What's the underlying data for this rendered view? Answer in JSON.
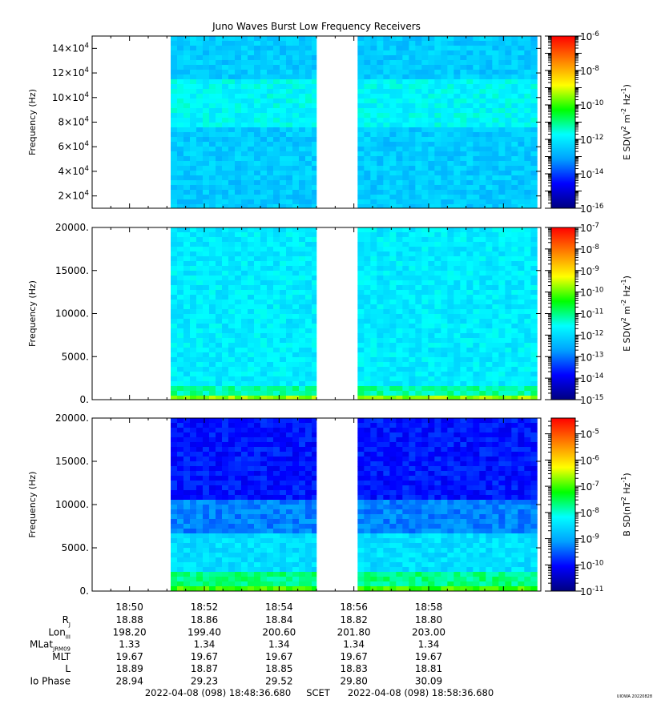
{
  "title": "Juno Waves Burst Low Frequency Receivers",
  "colormap": [
    "#000080",
    "#0000ff",
    "#00a0ff",
    "#00ffff",
    "#00ff00",
    "#ffff00",
    "#ff8000",
    "#ff0000"
  ],
  "chart_data": [
    {
      "type": "heatmap",
      "ylabel": "Frequency (Hz)",
      "ylim": [
        10000,
        150000
      ],
      "yticks": [
        {
          "v": 20000,
          "b": "2×10",
          "e": "4"
        },
        {
          "v": 40000,
          "b": "4×10",
          "e": "4"
        },
        {
          "v": 60000,
          "b": "6×10",
          "e": "4"
        },
        {
          "v": 80000,
          "b": "8×10",
          "e": "4"
        },
        {
          "v": 100000,
          "b": "10×10",
          "e": "4"
        },
        {
          "v": 120000,
          "b": "12×10",
          "e": "4"
        },
        {
          "v": 140000,
          "b": "14×10",
          "e": "4"
        }
      ],
      "colorbar": {
        "label_main": "E SD(V",
        "label_sup1": "2",
        "label_mid": " m",
        "label_sup2": "-2",
        "label_mid2": " Hz",
        "label_sup3": "-1",
        "label_end": ")",
        "log_range": [
          -16,
          -6
        ],
        "ticks": [
          {
            "v": -16,
            "b": "10",
            "e": "-16"
          },
          {
            "v": -14,
            "b": "10",
            "e": "-14"
          },
          {
            "v": -12,
            "b": "10",
            "e": "-12"
          },
          {
            "v": -10,
            "b": "10",
            "e": "-10"
          },
          {
            "v": -8,
            "b": "10",
            "e": "-8"
          },
          {
            "v": -6,
            "b": "10",
            "e": "-6"
          }
        ]
      }
    },
    {
      "type": "heatmap",
      "ylabel": "Frequency (Hz)",
      "ylim": [
        0,
        20000
      ],
      "yticks": [
        {
          "v": 0,
          "b": "0.",
          "e": ""
        },
        {
          "v": 5000,
          "b": "5000.",
          "e": ""
        },
        {
          "v": 10000,
          "b": "10000.",
          "e": ""
        },
        {
          "v": 15000,
          "b": "15000.",
          "e": ""
        },
        {
          "v": 20000,
          "b": "20000.",
          "e": ""
        }
      ],
      "colorbar": {
        "label_main": "E SD(V",
        "label_sup1": "2",
        "label_mid": " m",
        "label_sup2": "-2",
        "label_mid2": " Hz",
        "label_sup3": "-1",
        "label_end": ")",
        "log_range": [
          -15,
          -7
        ],
        "ticks": [
          {
            "v": -15,
            "b": "10",
            "e": "-15"
          },
          {
            "v": -14,
            "b": "10",
            "e": "-14"
          },
          {
            "v": -13,
            "b": "10",
            "e": "-13"
          },
          {
            "v": -12,
            "b": "10",
            "e": "-12"
          },
          {
            "v": -11,
            "b": "10",
            "e": "-11"
          },
          {
            "v": -10,
            "b": "10",
            "e": "-10"
          },
          {
            "v": -9,
            "b": "10",
            "e": "-9"
          },
          {
            "v": -8,
            "b": "10",
            "e": "-8"
          },
          {
            "v": -7,
            "b": "10",
            "e": "-7"
          }
        ]
      }
    },
    {
      "type": "heatmap",
      "ylabel": "Frequency (Hz)",
      "ylim": [
        0,
        20000
      ],
      "yticks": [
        {
          "v": 0,
          "b": "0.",
          "e": ""
        },
        {
          "v": 5000,
          "b": "5000.",
          "e": ""
        },
        {
          "v": 10000,
          "b": "10000.",
          "e": ""
        },
        {
          "v": 15000,
          "b": "15000.",
          "e": ""
        },
        {
          "v": 20000,
          "b": "20000.",
          "e": ""
        }
      ],
      "colorbar": {
        "label_main": "B SD(nT",
        "label_sup1": "2",
        "label_mid": " Hz",
        "label_sup2": "-1",
        "label_mid2": "",
        "label_sup3": "",
        "label_end": ")",
        "log_range": [
          -11,
          -4.4
        ],
        "ticks": [
          {
            "v": -11,
            "b": "10",
            "e": "-11"
          },
          {
            "v": -10,
            "b": "10",
            "e": "-10"
          },
          {
            "v": -9,
            "b": "10",
            "e": "-9"
          },
          {
            "v": -8,
            "b": "10",
            "e": "-8"
          },
          {
            "v": -7,
            "b": "10",
            "e": "-7"
          },
          {
            "v": -6,
            "b": "10",
            "e": "-6"
          },
          {
            "v": -5,
            "b": "10",
            "e": "-5"
          }
        ]
      }
    }
  ],
  "time_axis": {
    "xlim": [
      2869,
      2881
    ],
    "data_segments": [
      [
        2871.1,
        2875.0
      ],
      [
        2876.1,
        2880.9
      ]
    ],
    "ticks": [
      {
        "v": 2870,
        "label": "18:50"
      },
      {
        "v": 2872,
        "label": "18:52"
      },
      {
        "v": 2874,
        "label": "18:54"
      },
      {
        "v": 2876,
        "label": "18:56"
      },
      {
        "v": 2878,
        "label": "18:58"
      }
    ]
  },
  "ephemeris": [
    {
      "label": "R",
      "sub": "J",
      "values": [
        "18.88",
        "18.86",
        "18.84",
        "18.82",
        "18.80"
      ]
    },
    {
      "label": "Lon",
      "sub": "III",
      "values": [
        "198.20",
        "199.40",
        "200.60",
        "201.80",
        "203.00"
      ]
    },
    {
      "label": "MLat",
      "sub": "JRM09",
      "values": [
        "1.33",
        "1.34",
        "1.34",
        "1.34",
        "1.34"
      ]
    },
    {
      "label": "MLT",
      "sub": "",
      "values": [
        "19.67",
        "19.67",
        "19.67",
        "19.67",
        "19.67"
      ]
    },
    {
      "label": "L",
      "sub": "",
      "values": [
        "18.89",
        "18.87",
        "18.85",
        "18.83",
        "18.81"
      ]
    },
    {
      "label": "Io Phase",
      "sub": "",
      "values": [
        "28.94",
        "29.23",
        "29.52",
        "29.80",
        "30.09"
      ]
    }
  ],
  "footer": {
    "start": "2022-04-08 (098) 18:48:36.680",
    "scet": "SCET",
    "end": "2022-04-08 (098) 18:58:36.680",
    "credit": "UIOWA 20220828"
  }
}
